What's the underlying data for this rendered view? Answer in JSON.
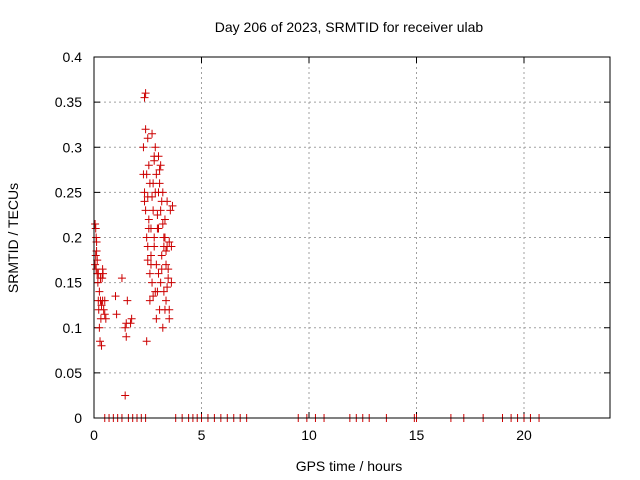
{
  "chart_data": {
    "type": "scatter",
    "title": "Day 206 of 2023, SRMTID for receiver ulab",
    "xlabel": "GPS time / hours",
    "ylabel": "SRMTID / TECUs",
    "xlim": [
      0,
      24
    ],
    "ylim": [
      0,
      0.4
    ],
    "grid": true,
    "x_ticks": [
      0,
      5,
      10,
      15,
      20
    ],
    "y_ticks": [
      0,
      0.05,
      0.1,
      0.15,
      0.2,
      0.25,
      0.3,
      0.35,
      0.4
    ],
    "x_tick_labels": [
      "0",
      "5",
      "10",
      "15",
      "20"
    ],
    "y_tick_labels": [
      "0",
      "0.05",
      "0.1",
      "0.15",
      "0.2",
      "0.25",
      "0.3",
      "0.35",
      "0.4"
    ],
    "marker": "plus",
    "series": [
      {
        "name": "SRMTID",
        "color": "#cc0000",
        "x": [
          0.05,
          0.05,
          0.08,
          0.08,
          0.1,
          0.1,
          0.12,
          0.12,
          0.15,
          0.15,
          0.18,
          0.2,
          0.2,
          0.22,
          0.25,
          0.25,
          0.28,
          0.3,
          0.3,
          0.32,
          0.35,
          0.35,
          0.38,
          0.4,
          0.4,
          0.42,
          0.45,
          0.5,
          0.5,
          0.55,
          1.0,
          1.05,
          1.3,
          1.45,
          1.5,
          1.5,
          1.55,
          1.7,
          1.75,
          1.45,
          2.3,
          2.3,
          2.35,
          2.35,
          2.4,
          2.4,
          2.4,
          2.45,
          2.45,
          2.5,
          2.5,
          2.5,
          2.55,
          2.55,
          2.6,
          2.6,
          2.6,
          2.65,
          2.65,
          2.7,
          2.7,
          2.7,
          2.75,
          2.75,
          2.8,
          2.8,
          2.8,
          2.85,
          2.85,
          2.9,
          2.9,
          2.9,
          2.95,
          2.95,
          3.0,
          3.0,
          3.0,
          3.05,
          3.05,
          3.1,
          3.1,
          3.1,
          3.15,
          3.15,
          3.2,
          3.2,
          3.2,
          3.25,
          3.25,
          3.3,
          3.3,
          3.3,
          3.35,
          3.35,
          3.4,
          3.4,
          3.4,
          3.45,
          3.5,
          3.5,
          3.55,
          3.6,
          3.6,
          3.65,
          2.35,
          2.45,
          2.55,
          2.65,
          2.75,
          2.85,
          2.95,
          3.05,
          3.15,
          3.25,
          3.35,
          3.45,
          2.5,
          3.0,
          3.5,
          2.8,
          0.5,
          0.7,
          0.9,
          1.1,
          1.3,
          1.6,
          1.8,
          2.0,
          2.2,
          2.4,
          3.8,
          4.1,
          4.4,
          4.6,
          4.8,
          5.0,
          5.3,
          5.6,
          5.9,
          6.2,
          6.5,
          6.8,
          7.1,
          9.5,
          9.9,
          10.3,
          10.7,
          11.9,
          12.2,
          12.5,
          12.8,
          13.6,
          14.9,
          15.0,
          16.6,
          17.2,
          18.1,
          19.0,
          19.4,
          19.7,
          20.0,
          20.3,
          20.7
        ],
        "y": [
          0.17,
          0.215,
          0.18,
          0.21,
          0.165,
          0.2,
          0.185,
          0.195,
          0.16,
          0.175,
          0.15,
          0.13,
          0.16,
          0.12,
          0.1,
          0.14,
          0.085,
          0.13,
          0.155,
          0.11,
          0.08,
          0.125,
          0.155,
          0.13,
          0.165,
          0.16,
          0.12,
          0.13,
          0.115,
          0.11,
          0.135,
          0.115,
          0.155,
          0.1,
          0.09,
          0.105,
          0.13,
          0.105,
          0.11,
          0.025,
          0.27,
          0.3,
          0.355,
          0.25,
          0.36,
          0.23,
          0.32,
          0.2,
          0.085,
          0.31,
          0.245,
          0.19,
          0.28,
          0.22,
          0.16,
          0.26,
          0.13,
          0.17,
          0.21,
          0.245,
          0.15,
          0.315,
          0.23,
          0.135,
          0.29,
          0.19,
          0.2,
          0.3,
          0.25,
          0.11,
          0.27,
          0.17,
          0.225,
          0.14,
          0.29,
          0.21,
          0.16,
          0.26,
          0.12,
          0.28,
          0.23,
          0.15,
          0.24,
          0.18,
          0.215,
          0.1,
          0.25,
          0.19,
          0.14,
          0.2,
          0.22,
          0.12,
          0.17,
          0.13,
          0.19,
          0.24,
          0.145,
          0.165,
          0.195,
          0.12,
          0.23,
          0.19,
          0.15,
          0.235,
          0.24,
          0.27,
          0.21,
          0.18,
          0.26,
          0.14,
          0.21,
          0.275,
          0.165,
          0.2,
          0.185,
          0.155,
          0.175,
          0.25,
          0.11,
          0.285,
          0,
          0,
          0,
          0,
          0,
          0,
          0,
          0,
          0,
          0,
          0,
          0,
          0,
          0,
          0,
          0,
          0,
          0,
          0,
          0,
          0,
          0,
          0,
          0,
          0,
          0,
          0,
          0,
          0,
          0,
          0,
          0,
          0,
          0,
          0,
          0,
          0,
          0,
          0,
          0,
          0,
          0,
          0
        ]
      }
    ]
  }
}
